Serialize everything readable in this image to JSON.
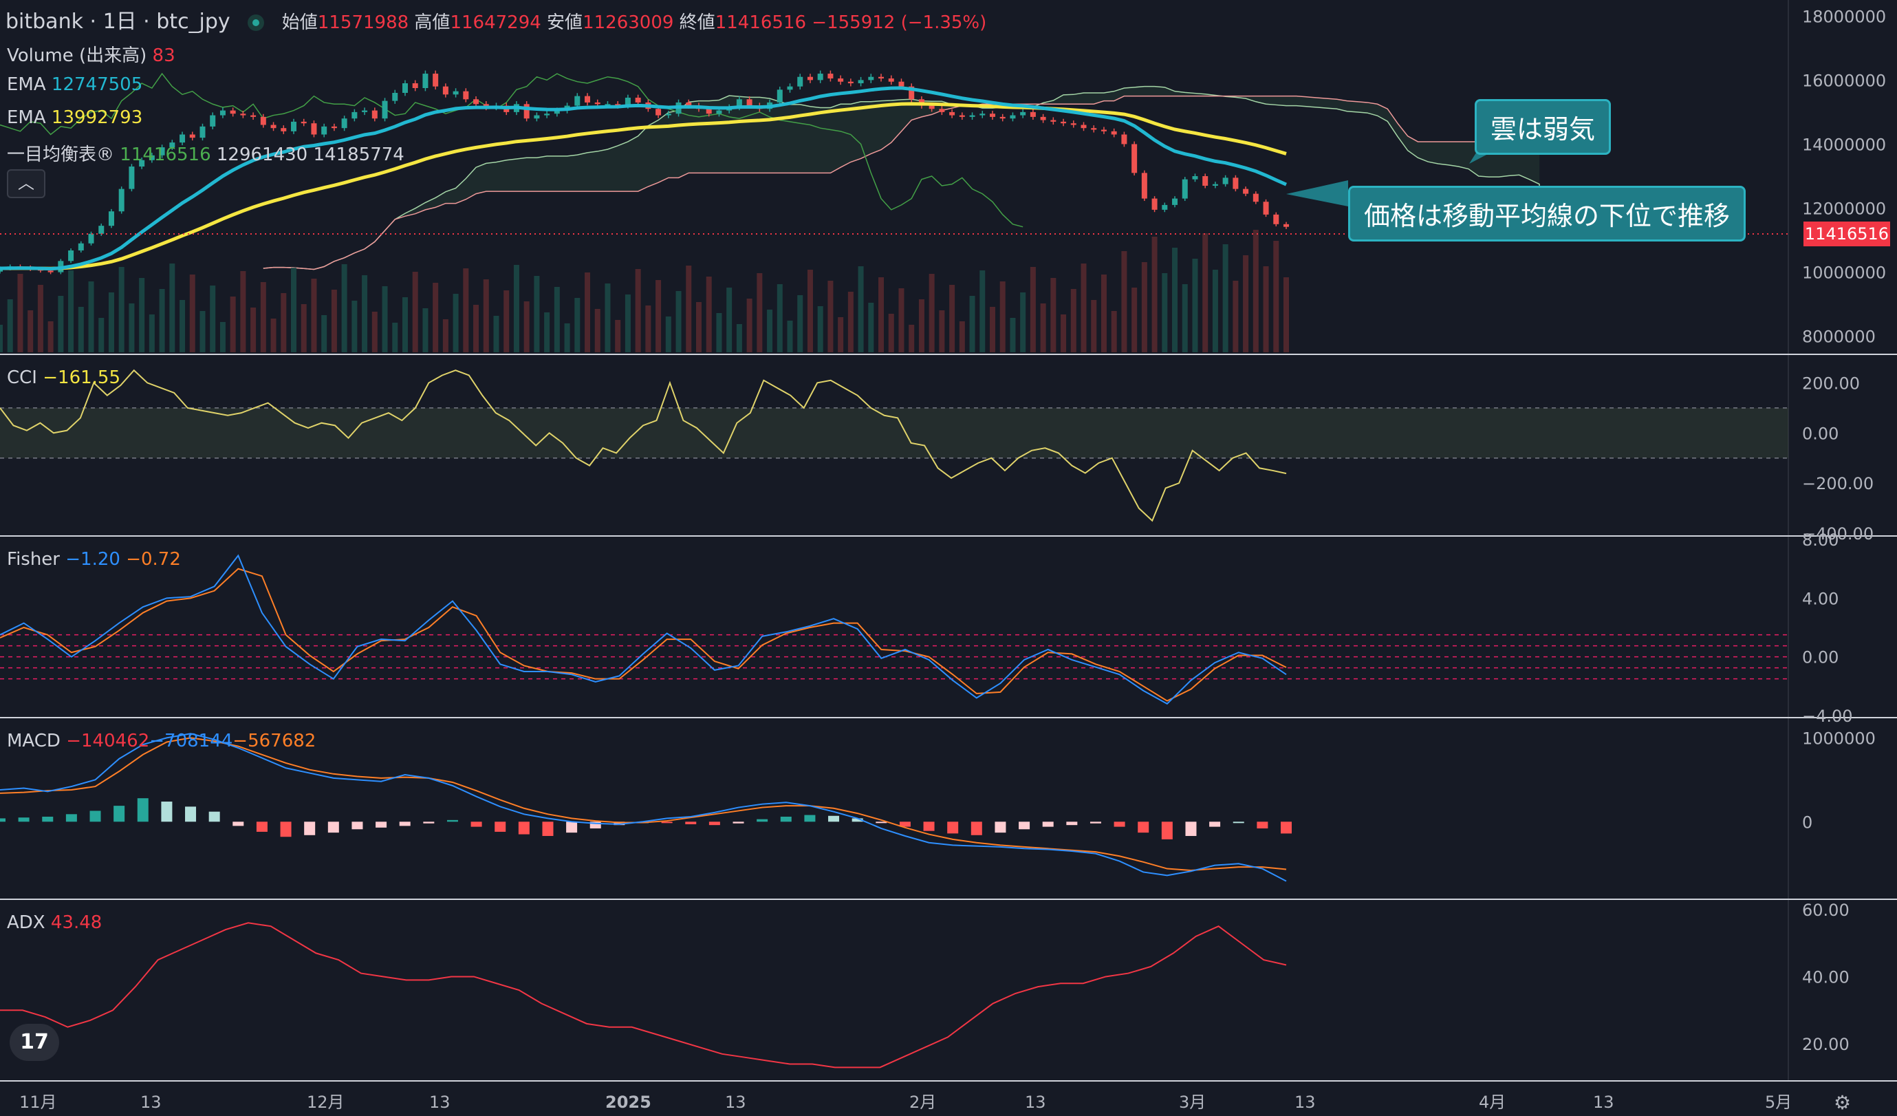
{
  "header": {
    "symbol": "bitbank · 1日 · btc_jpy",
    "open_label": "始値",
    "open": "11571988",
    "high_label": "高値",
    "high": "11647294",
    "low_label": "安値",
    "low": "11263009",
    "close_label": "終値",
    "close": "11416516",
    "change": "−155912 (−1.35%)"
  },
  "legend": {
    "volume_label": "Volume (出来高)",
    "volume_value": "83",
    "ema1_label": "EMA",
    "ema1_value": "12747505",
    "ema2_label": "EMA",
    "ema2_value": "13992793",
    "ichimoku_label": "一目均衡表",
    "ichimoku_v1": "11416516",
    "ichimoku_v2": "12961430",
    "ichimoku_v3": "14185774",
    "cci_label": "CCI",
    "cci_value": "−161.55",
    "fisher_label": "Fisher",
    "fisher_v1": "−1.20",
    "fisher_v2": "−0.72",
    "macd_label": "MACD",
    "macd_v1": "−140462",
    "macd_v2": "−708144",
    "macd_v3": "−567682",
    "adx_label": "ADX",
    "adx_value": "43.48"
  },
  "annotations": {
    "cloud_weak": "雲は弱気",
    "below_ma": "価格は移動平均線の下位で推移"
  },
  "last_price_tag": "11416516",
  "colors": {
    "background": "#161a25",
    "up": "#26a69a",
    "down": "#ef5350",
    "ema_fast": "#22b8d1",
    "ema_slow": "#f5e642",
    "callout": "#1f7c87"
  },
  "chart_data": [
    {
      "type": "candlestick",
      "title": "bitbank · 1日 · btc_jpy",
      "x_ticks": [
        "11月",
        "13",
        "12月",
        "13",
        "2025",
        "13",
        "2月",
        "13",
        "3月",
        "13",
        "4月",
        "13",
        "5月"
      ],
      "y_ticks": [
        "18000000",
        "16000000",
        "14000000",
        "12000000",
        "10000000",
        "8000000"
      ],
      "ylim": [
        7500000,
        18500000
      ],
      "close": [
        10120000,
        10180000,
        10150000,
        10100000,
        10050000,
        10000000,
        10350000,
        10680000,
        10900000,
        11200000,
        11450000,
        11900000,
        12600000,
        13300000,
        13500000,
        13650000,
        13900000,
        14050000,
        14300000,
        14200000,
        14550000,
        14900000,
        15050000,
        14950000,
        14900000,
        14850000,
        14600000,
        14500000,
        14400000,
        14700000,
        14650000,
        14300000,
        14550000,
        14500000,
        14800000,
        15000000,
        15050000,
        14800000,
        15350000,
        15600000,
        15900000,
        15750000,
        16200000,
        15800000,
        15550000,
        15650000,
        15400000,
        15250000,
        15150000,
        15200000,
        15000000,
        15250000,
        14800000,
        14900000,
        14950000,
        15050000,
        15200000,
        15500000,
        15300000,
        15250000,
        15250000,
        15200000,
        15450000,
        15300000,
        15100000,
        14900000,
        14950000,
        15300000,
        15200000,
        15100000,
        14950000,
        15050000,
        15150000,
        15400000,
        15200000,
        15100000,
        15300000,
        15700000,
        15800000,
        16100000,
        16000000,
        16200000,
        16050000,
        15950000,
        15900000,
        16000000,
        16100000,
        16050000,
        15950000,
        15800000,
        15400000,
        15200000,
        15100000,
        15000000,
        14900000,
        14850000,
        14900000,
        14950000,
        14850000,
        14800000,
        14900000,
        15000000,
        14850000,
        14750000,
        14700000,
        14650000,
        14600000,
        14500000,
        14450000,
        14400000,
        14300000,
        14000000,
        13100000,
        12300000,
        11950000,
        12100000,
        12300000,
        12900000,
        13000000,
        12700000,
        12750000,
        12950000,
        12600000,
        12450000,
        12200000,
        11800000,
        11500000,
        11416516
      ],
      "ema_fast": {
        "name": "EMA",
        "last": 12747505
      },
      "ema_slow": {
        "name": "EMA",
        "last": 13992793
      },
      "volume_last": 83
    },
    {
      "type": "line",
      "title": "CCI",
      "y_ticks": [
        "200.00",
        "0.00",
        "−200.00",
        "−400.00"
      ],
      "ylim": [
        -400,
        300
      ],
      "bands": [
        100,
        -100
      ],
      "values": [
        100,
        30,
        10,
        40,
        0,
        10,
        60,
        200,
        150,
        190,
        250,
        200,
        180,
        160,
        100,
        90,
        80,
        70,
        80,
        100,
        120,
        80,
        40,
        20,
        40,
        30,
        -20,
        40,
        60,
        80,
        50,
        100,
        200,
        230,
        250,
        230,
        150,
        80,
        50,
        0,
        -50,
        0,
        -40,
        -100,
        -130,
        -60,
        -80,
        -20,
        30,
        50,
        200,
        50,
        20,
        -30,
        -80,
        40,
        80,
        210,
        180,
        150,
        100,
        200,
        210,
        180,
        150,
        100,
        70,
        60,
        -40,
        -50,
        -140,
        -180,
        -150,
        -120,
        -100,
        -150,
        -100,
        -70,
        -60,
        -80,
        -130,
        -160,
        -120,
        -100,
        -200,
        -300,
        -350,
        -220,
        -200,
        -70,
        -110,
        -150,
        -100,
        -80,
        -140,
        -150,
        -161.55
      ],
      "last": -161.55
    },
    {
      "type": "line",
      "title": "Fisher",
      "y_ticks": [
        "8.00",
        "4.00",
        "0.00",
        "−4.00"
      ],
      "ylim": [
        -4,
        8
      ],
      "bands": [
        1.5,
        0.75,
        0,
        -0.75,
        -1.5
      ],
      "series": [
        {
          "name": "Fisher",
          "values": [
            1.5,
            2.3,
            1.2,
            0,
            1.1,
            2.3,
            3.4,
            4.0,
            4.1,
            4.8,
            6.9,
            3.0,
            0.7,
            -0.5,
            -1.5,
            0.7,
            1.2,
            1.1,
            2.5,
            3.8,
            1.8,
            -0.5,
            -1.0,
            -1.0,
            -1.2,
            -1.7,
            -1.3,
            0.2,
            1.6,
            0.6,
            -0.9,
            -0.6,
            1.4,
            1.7,
            2.1,
            2.6,
            1.9,
            -0.1,
            0.5,
            -0.2,
            -1.6,
            -2.8,
            -1.8,
            -0.2,
            0.5,
            -0.2,
            -0.7,
            -1.2,
            -2.3,
            -3.2,
            -1.6,
            -0.4,
            0.3,
            -0.1,
            -1.2
          ],
          "last": -1.2
        },
        {
          "name": "Trigger",
          "values": [
            1.3,
            2.0,
            1.5,
            0.3,
            0.7,
            1.8,
            3.0,
            3.8,
            4.0,
            4.5,
            6.0,
            5.5,
            1.5,
            0.1,
            -1.0,
            0.2,
            1.1,
            1.2,
            2.0,
            3.4,
            2.8,
            0.3,
            -0.6,
            -1.0,
            -1.1,
            -1.5,
            -1.5,
            -0.2,
            1.2,
            1.2,
            -0.3,
            -0.8,
            0.8,
            1.6,
            2.0,
            2.3,
            2.3,
            0.5,
            0.4,
            0.0,
            -1.2,
            -2.5,
            -2.4,
            -0.7,
            0.3,
            0.2,
            -0.5,
            -1.0,
            -2.0,
            -3.0,
            -2.2,
            -0.8,
            0.1,
            0.1,
            -0.72
          ],
          "last": -0.72
        }
      ]
    },
    {
      "type": "bar+line",
      "title": "MACD",
      "y_ticks": [
        "1000000",
        "0"
      ],
      "ylim": [
        -900000,
        1200000
      ],
      "series": [
        {
          "name": "Histogram",
          "values": [
            40000,
            50000,
            60000,
            90000,
            130000,
            190000,
            280000,
            240000,
            180000,
            120000,
            -50000,
            -120000,
            -180000,
            -160000,
            -130000,
            -90000,
            -70000,
            -50000,
            -20000,
            20000,
            -60000,
            -120000,
            -150000,
            -170000,
            -130000,
            -80000,
            -40000,
            0,
            -10000,
            -30000,
            -40000,
            -20000,
            30000,
            60000,
            80000,
            70000,
            40000,
            -10000,
            -60000,
            -110000,
            -140000,
            -160000,
            -130000,
            -90000,
            -60000,
            -40000,
            -20000,
            -60000,
            -130000,
            -210000,
            -170000,
            -60000,
            0,
            -80000,
            -140462
          ],
          "last": -140462
        },
        {
          "name": "MACD",
          "values": [
            380000,
            400000,
            360000,
            420000,
            500000,
            750000,
            920000,
            1000000,
            1050000,
            980000,
            880000,
            760000,
            640000,
            580000,
            520000,
            500000,
            480000,
            560000,
            520000,
            430000,
            300000,
            180000,
            90000,
            40000,
            0,
            -20000,
            -30000,
            0,
            40000,
            60000,
            110000,
            170000,
            210000,
            230000,
            190000,
            120000,
            40000,
            -80000,
            -170000,
            -250000,
            -280000,
            -290000,
            -300000,
            -320000,
            -330000,
            -350000,
            -380000,
            -470000,
            -600000,
            -640000,
            -590000,
            -520000,
            -500000,
            -560000,
            -708144
          ],
          "last": -708144
        },
        {
          "name": "Signal",
          "values": [
            340000,
            350000,
            370000,
            380000,
            420000,
            600000,
            800000,
            950000,
            1000000,
            960000,
            900000,
            800000,
            700000,
            620000,
            570000,
            540000,
            520000,
            530000,
            520000,
            470000,
            370000,
            260000,
            160000,
            90000,
            40000,
            10000,
            -10000,
            -10000,
            10000,
            50000,
            90000,
            130000,
            170000,
            190000,
            190000,
            160000,
            100000,
            20000,
            -70000,
            -150000,
            -210000,
            -250000,
            -280000,
            -300000,
            -320000,
            -340000,
            -360000,
            -410000,
            -480000,
            -560000,
            -580000,
            -560000,
            -540000,
            -540000,
            -567682
          ],
          "last": -567682
        }
      ]
    },
    {
      "type": "line",
      "title": "ADX",
      "y_ticks": [
        "60.00",
        "40.00",
        "20.00"
      ],
      "ylim": [
        10,
        62
      ],
      "values": [
        30,
        30,
        28,
        25,
        27,
        30,
        37,
        45,
        48,
        51,
        54,
        56,
        55,
        51,
        47,
        45,
        41,
        40,
        39,
        39,
        40,
        40,
        38,
        36,
        32,
        29,
        26,
        25,
        25,
        23,
        21,
        19,
        17,
        16,
        15,
        14,
        14,
        13,
        13,
        13,
        16,
        19,
        22,
        27,
        32,
        35,
        37,
        38,
        38,
        40,
        41,
        43,
        47,
        52,
        55,
        50,
        45,
        43.48
      ],
      "last": 43.48
    }
  ]
}
